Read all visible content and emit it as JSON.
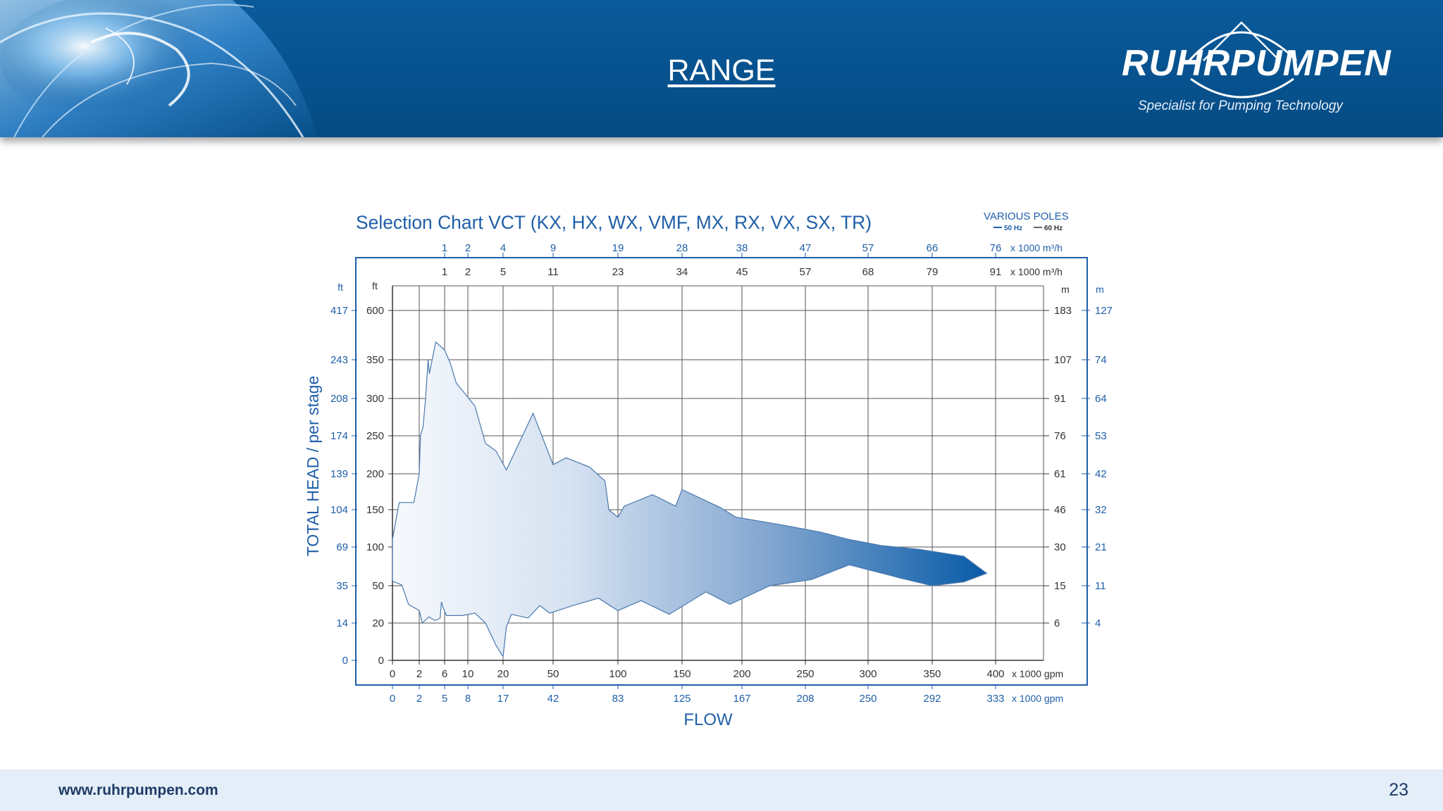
{
  "header": {
    "title": "RANGE",
    "brand_name": "RUHRPUMPEN",
    "brand_tagline": "Specialist for Pumping Technology"
  },
  "footer": {
    "url": "www.ruhrpumpen.com",
    "page_number": "23"
  },
  "colors": {
    "header_blue": "#06508c",
    "chart_ink": "#1f5fa8",
    "fill_light": "#f4f8fd",
    "fill_dark": "#0a5ca8"
  },
  "chart_data": {
    "type": "area",
    "title": "Selection Chart VCT (KX, HX, WX, VMF, MX, RX, VX, SX, TR)",
    "legend_title": "VARIOUS POLES",
    "legend": [
      "50 Hz",
      "60 Hz"
    ],
    "xlabel": "FLOW",
    "ylabel": "TOTAL HEAD / per stage",
    "grid": true,
    "x_axis": {
      "unit_main": "x 1000 gpm",
      "ticks_gpm_50hz": [
        "0",
        "2",
        "6",
        "10",
        "20",
        "50",
        "100",
        "150",
        "200",
        "250",
        "300",
        "350",
        "400"
      ],
      "ticks_gpm_60hz": [
        "0",
        "2",
        "5",
        "8",
        "17",
        "42",
        "83",
        "125",
        "167",
        "208",
        "250",
        "292",
        "333"
      ],
      "ticks_m3h_50hz": [
        "1",
        "2",
        "5",
        "11",
        "23",
        "34",
        "45",
        "57",
        "68",
        "79",
        "91"
      ],
      "ticks_m3h_60hz": [
        "1",
        "2",
        "4",
        "9",
        "19",
        "28",
        "38",
        "47",
        "57",
        "66",
        "76"
      ],
      "unit_m3h": "x 1000 m³/h",
      "unit_gpm_60hz": "x 1000 gpm",
      "range": [
        0,
        400
      ]
    },
    "y_axis": {
      "unit_ft": "ft",
      "unit_m": "m",
      "ticks_ft_50hz": [
        "0",
        "20",
        "50",
        "100",
        "150",
        "200",
        "250",
        "300",
        "350",
        "600"
      ],
      "ticks_ft_60hz": [
        "0",
        "14",
        "35",
        "69",
        "104",
        "139",
        "174",
        "208",
        "243",
        "417"
      ],
      "ticks_m_50hz": [
        "6",
        "15",
        "30",
        "46",
        "61",
        "76",
        "91",
        "107",
        "183"
      ],
      "ticks_m_60hz": [
        "4",
        "11",
        "21",
        "32",
        "42",
        "53",
        "64",
        "74",
        "127"
      ],
      "range": [
        0,
        600
      ]
    },
    "envelope_upper": [
      {
        "x": 0,
        "y": 110
      },
      {
        "x": 0.5,
        "y": 160
      },
      {
        "x": 1.6,
        "y": 160
      },
      {
        "x": 2,
        "y": 200
      },
      {
        "x": 2.2,
        "y": 250
      },
      {
        "x": 2.6,
        "y": 262
      },
      {
        "x": 3,
        "y": 300
      },
      {
        "x": 3.4,
        "y": 350
      },
      {
        "x": 3.6,
        "y": 332
      },
      {
        "x": 4.6,
        "y": 440
      },
      {
        "x": 6,
        "y": 400
      },
      {
        "x": 7,
        "y": 345
      },
      {
        "x": 8,
        "y": 320
      },
      {
        "x": 12,
        "y": 290
      },
      {
        "x": 15,
        "y": 240
      },
      {
        "x": 18,
        "y": 230
      },
      {
        "x": 22,
        "y": 205
      },
      {
        "x": 38,
        "y": 280
      },
      {
        "x": 50,
        "y": 212
      },
      {
        "x": 60,
        "y": 221
      },
      {
        "x": 78,
        "y": 209
      },
      {
        "x": 90,
        "y": 190
      },
      {
        "x": 93,
        "y": 150
      },
      {
        "x": 100,
        "y": 140
      },
      {
        "x": 105,
        "y": 155
      },
      {
        "x": 127,
        "y": 171
      },
      {
        "x": 145,
        "y": 155
      },
      {
        "x": 150,
        "y": 178
      },
      {
        "x": 182,
        "y": 153
      },
      {
        "x": 195,
        "y": 140
      },
      {
        "x": 230,
        "y": 130
      },
      {
        "x": 262,
        "y": 120
      },
      {
        "x": 285,
        "y": 110
      },
      {
        "x": 310,
        "y": 102
      },
      {
        "x": 340,
        "y": 97
      },
      {
        "x": 375,
        "y": 88
      },
      {
        "x": 393,
        "y": 66
      }
    ],
    "envelope_lower": [
      {
        "x": 393,
        "y": 66
      },
      {
        "x": 375,
        "y": 55
      },
      {
        "x": 350,
        "y": 50
      },
      {
        "x": 325,
        "y": 60
      },
      {
        "x": 285,
        "y": 77
      },
      {
        "x": 255,
        "y": 58
      },
      {
        "x": 222,
        "y": 50
      },
      {
        "x": 190,
        "y": 35
      },
      {
        "x": 170,
        "y": 45
      },
      {
        "x": 140,
        "y": 27
      },
      {
        "x": 118,
        "y": 38
      },
      {
        "x": 100,
        "y": 30
      },
      {
        "x": 85,
        "y": 40
      },
      {
        "x": 65,
        "y": 34
      },
      {
        "x": 48,
        "y": 28
      },
      {
        "x": 42,
        "y": 34
      },
      {
        "x": 35,
        "y": 24
      },
      {
        "x": 25,
        "y": 27
      },
      {
        "x": 22,
        "y": 18
      },
      {
        "x": 20,
        "y": 2
      },
      {
        "x": 18,
        "y": 8
      },
      {
        "x": 15,
        "y": 20
      },
      {
        "x": 12,
        "y": 28
      },
      {
        "x": 9,
        "y": 26
      },
      {
        "x": 6.3,
        "y": 26
      },
      {
        "x": 5.8,
        "y": 32
      },
      {
        "x": 5.5,
        "y": 37
      },
      {
        "x": 5.3,
        "y": 24
      },
      {
        "x": 4.5,
        "y": 22
      },
      {
        "x": 3.5,
        "y": 25
      },
      {
        "x": 2.5,
        "y": 20
      },
      {
        "x": 2,
        "y": 30
      },
      {
        "x": 1.2,
        "y": 35
      },
      {
        "x": 0.7,
        "y": 51
      },
      {
        "x": 0,
        "y": 56
      }
    ]
  }
}
